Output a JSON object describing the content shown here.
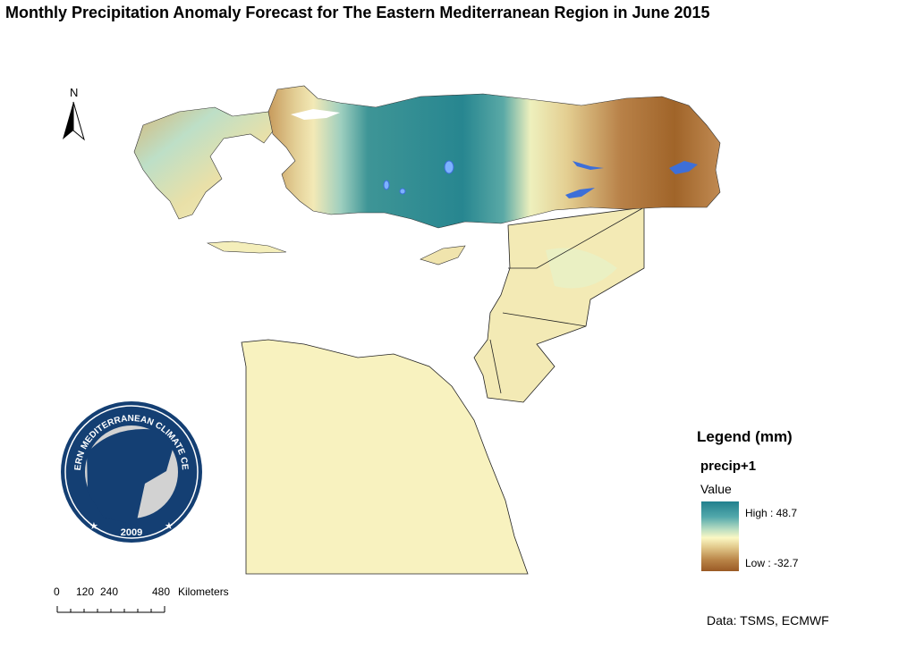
{
  "title": "Monthly Precipitation Anomaly Forecast for The Eastern Mediterranean Region in June 2015",
  "north_arrow": {
    "label": "N"
  },
  "logo": {
    "text": "EASTERN MEDITERRANEAN CLIMATE CENTRE",
    "year": "2009"
  },
  "scale": {
    "ticks": [
      "0",
      "120",
      "240",
      "480"
    ],
    "unit": "Kilometers"
  },
  "legend": {
    "title": "Legend (mm)",
    "layer": "precip+1",
    "field": "Value",
    "high": "High : 48.7",
    "low": "Low : -32.7"
  },
  "credit": "Data: TSMS, ECMWF",
  "colors": {
    "wet": "#21808d",
    "neutral": "#fbf8c4",
    "dry": "#9a5a25",
    "lake": "#3d6fd8",
    "logo_navy": "#143f73"
  }
}
